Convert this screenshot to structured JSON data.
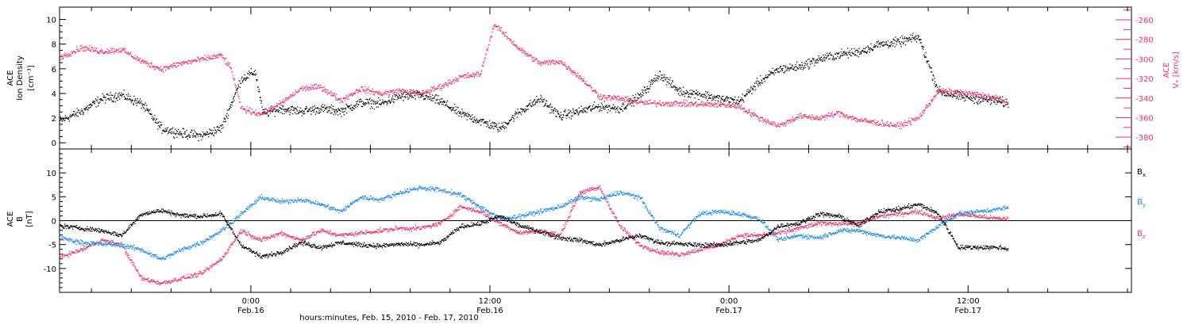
{
  "colors": {
    "black": "#000000",
    "pink": "#e8336a",
    "blue": "#1e88e5",
    "frame": "#000000"
  },
  "xaxis": {
    "label": "hours:minutes, Feb. 15, 2010 - Feb. 17, 2010",
    "ticks": [
      {
        "t": 24,
        "time": "0:00",
        "date": "Feb.16"
      },
      {
        "t": 36,
        "time": "12:00",
        "date": "Feb.16"
      },
      {
        "t": 48,
        "time": "0:00",
        "date": "Feb.17"
      },
      {
        "t": 60,
        "time": "12:00",
        "date": "Feb.17"
      }
    ],
    "range_hours": [
      14.4,
      68.2
    ]
  },
  "chart_data": [
    {
      "type": "scatter",
      "panel": "top",
      "ylabel_left": [
        "ACE",
        "Ion Density",
        "[cm⁻³]"
      ],
      "ylabel_right": [
        "ACE",
        "Vₓ [km/s]"
      ],
      "ylim_left": [
        -0.5,
        11
      ],
      "yticks_left": [
        0,
        2,
        4,
        6,
        8,
        10
      ],
      "ylim_right": [
        -392,
        -247
      ],
      "yticks_right": [
        -380,
        -360,
        -340,
        -320,
        -300,
        -280,
        -260
      ],
      "series": [
        {
          "color": "black",
          "axis": "left",
          "data": [
            [
              14.4,
              1.8
            ],
            [
              15.5,
              2.6
            ],
            [
              16.5,
              3.6
            ],
            [
              17.5,
              3.9
            ],
            [
              18.5,
              3.2
            ],
            [
              19.5,
              1.2
            ],
            [
              20.5,
              0.8
            ],
            [
              21.5,
              0.6
            ],
            [
              22.5,
              1.2
            ],
            [
              23.0,
              3.2
            ],
            [
              23.5,
              5.2
            ],
            [
              24.2,
              5.8
            ],
            [
              24.6,
              2.4
            ],
            [
              25.5,
              2.8
            ],
            [
              26.5,
              2.6
            ],
            [
              27.5,
              2.8
            ],
            [
              28.5,
              2.6
            ],
            [
              29.5,
              3.3
            ],
            [
              30.5,
              3.2
            ],
            [
              31.5,
              3.8
            ],
            [
              32.5,
              3.9
            ],
            [
              33.5,
              3.4
            ],
            [
              34.5,
              2.4
            ],
            [
              35.5,
              1.8
            ],
            [
              36.5,
              1.2
            ],
            [
              37.5,
              2.6
            ],
            [
              38.5,
              3.6
            ],
            [
              39.5,
              2.2
            ],
            [
              40.5,
              2.6
            ],
            [
              41.5,
              3.0
            ],
            [
              42.5,
              2.8
            ],
            [
              43.5,
              3.8
            ],
            [
              44.5,
              5.6
            ],
            [
              45.5,
              4.2
            ],
            [
              46.5,
              4.0
            ],
            [
              47.5,
              3.6
            ],
            [
              48.5,
              3.4
            ],
            [
              49.5,
              5.0
            ],
            [
              50.5,
              6.0
            ],
            [
              51.5,
              6.2
            ],
            [
              52.5,
              6.8
            ],
            [
              53.5,
              7.2
            ],
            [
              54.5,
              7.4
            ],
            [
              55.5,
              8.0
            ],
            [
              56.5,
              8.2
            ],
            [
              57.5,
              8.6
            ],
            [
              58.5,
              4.2
            ],
            [
              59.5,
              3.8
            ],
            [
              60.5,
              3.6
            ],
            [
              61.5,
              3.4
            ],
            [
              62.0,
              3.2
            ]
          ]
        },
        {
          "color": "pink",
          "axis": "right",
          "data": [
            [
              14.4,
              -298
            ],
            [
              15.5,
              -288
            ],
            [
              16.5,
              -292
            ],
            [
              17.5,
              -290
            ],
            [
              18.5,
              -302
            ],
            [
              19.5,
              -310
            ],
            [
              20.5,
              -304
            ],
            [
              21.5,
              -300
            ],
            [
              22.5,
              -296
            ],
            [
              23.0,
              -310
            ],
            [
              23.5,
              -350
            ],
            [
              24.5,
              -356
            ],
            [
              25.5,
              -345
            ],
            [
              26.5,
              -330
            ],
            [
              27.5,
              -328
            ],
            [
              28.5,
              -342
            ],
            [
              29.5,
              -330
            ],
            [
              30.5,
              -335
            ],
            [
              31.5,
              -332
            ],
            [
              32.5,
              -335
            ],
            [
              33.5,
              -328
            ],
            [
              34.5,
              -318
            ],
            [
              35.5,
              -315
            ],
            [
              36.2,
              -264
            ],
            [
              37.5,
              -290
            ],
            [
              38.5,
              -304
            ],
            [
              39.5,
              -302
            ],
            [
              40.5,
              -318
            ],
            [
              41.5,
              -338
            ],
            [
              42.5,
              -340
            ],
            [
              43.5,
              -344
            ],
            [
              44.5,
              -345
            ],
            [
              45.5,
              -345
            ],
            [
              46.5,
              -346
            ],
            [
              47.5,
              -346
            ],
            [
              48.5,
              -348
            ],
            [
              49.5,
              -360
            ],
            [
              50.5,
              -368
            ],
            [
              51.5,
              -358
            ],
            [
              52.5,
              -360
            ],
            [
              53.5,
              -355
            ],
            [
              54.5,
              -362
            ],
            [
              55.5,
              -365
            ],
            [
              56.5,
              -368
            ],
            [
              57.5,
              -360
            ],
            [
              58.5,
              -332
            ],
            [
              59.5,
              -334
            ],
            [
              60.5,
              -336
            ],
            [
              61.5,
              -340
            ],
            [
              62.0,
              -345
            ]
          ]
        }
      ]
    },
    {
      "type": "scatter",
      "panel": "bottom",
      "ylabel_left": [
        "ACE",
        "B",
        "[nT]"
      ],
      "ylim": [
        -15,
        15
      ],
      "yticks": [
        -10,
        -5,
        0,
        5,
        10
      ],
      "legend": [
        "Bx",
        "By",
        "Bz"
      ],
      "series": [
        {
          "name": "Bx",
          "color": "black",
          "data": [
            [
              14.4,
              -1
            ],
            [
              15.5,
              -1.5
            ],
            [
              16.5,
              -2
            ],
            [
              17.5,
              -3
            ],
            [
              18.5,
              1.5
            ],
            [
              19.5,
              2.2
            ],
            [
              20.5,
              1.2
            ],
            [
              21.5,
              1.0
            ],
            [
              22.5,
              1.5
            ],
            [
              23.5,
              -5
            ],
            [
              24.5,
              -7.5
            ],
            [
              25.5,
              -6.5
            ],
            [
              26.5,
              -4.5
            ],
            [
              27.5,
              -5.5
            ],
            [
              28.5,
              -4.5
            ],
            [
              29.5,
              -5
            ],
            [
              30.5,
              -5.2
            ],
            [
              31.5,
              -4.8
            ],
            [
              32.5,
              -5
            ],
            [
              33.5,
              -4.5
            ],
            [
              34.5,
              -1.2
            ],
            [
              35.5,
              -0.5
            ],
            [
              36.5,
              1.0
            ],
            [
              37.5,
              -1
            ],
            [
              38.5,
              -2.2
            ],
            [
              39.5,
              -3.5
            ],
            [
              40.5,
              -4
            ],
            [
              41.5,
              -5
            ],
            [
              42.5,
              -4
            ],
            [
              43.5,
              -3
            ],
            [
              44.5,
              -4.5
            ],
            [
              45.5,
              -4.8
            ],
            [
              46.5,
              -5
            ],
            [
              47.5,
              -5
            ],
            [
              48.5,
              -4.5
            ],
            [
              49.5,
              -4
            ],
            [
              50.5,
              -1
            ],
            [
              51.5,
              -0.5
            ],
            [
              52.5,
              1.5
            ],
            [
              53.5,
              1
            ],
            [
              54.5,
              -1
            ],
            [
              55.5,
              2
            ],
            [
              56.5,
              2.5
            ],
            [
              57.5,
              3.5
            ],
            [
              58.5,
              1.5
            ],
            [
              59.5,
              -5.5
            ],
            [
              60.5,
              -5.5
            ],
            [
              61.5,
              -5.5
            ],
            [
              62.0,
              -5.8
            ]
          ]
        },
        {
          "name": "By",
          "color": "blue",
          "data": [
            [
              14.4,
              -3.5
            ],
            [
              15.5,
              -4.5
            ],
            [
              16.5,
              -4.8
            ],
            [
              17.5,
              -5
            ],
            [
              18.5,
              -6
            ],
            [
              19.5,
              -8
            ],
            [
              20.5,
              -6
            ],
            [
              21.5,
              -4.5
            ],
            [
              22.5,
              -2
            ],
            [
              23.5,
              1.5
            ],
            [
              24.5,
              5
            ],
            [
              25.5,
              4
            ],
            [
              26.5,
              4.5
            ],
            [
              27.5,
              3.5
            ],
            [
              28.5,
              2
            ],
            [
              29.5,
              5
            ],
            [
              30.5,
              4.5
            ],
            [
              31.5,
              6
            ],
            [
              32.5,
              7
            ],
            [
              33.5,
              6.5
            ],
            [
              34.5,
              5.5
            ],
            [
              35.5,
              3
            ],
            [
              36.5,
              0.5
            ],
            [
              37.5,
              1
            ],
            [
              38.5,
              2
            ],
            [
              39.5,
              3
            ],
            [
              40.5,
              5
            ],
            [
              41.5,
              4.5
            ],
            [
              42.5,
              6
            ],
            [
              43.5,
              5
            ],
            [
              44.5,
              -1.5
            ],
            [
              45.5,
              -3
            ],
            [
              46.5,
              1.5
            ],
            [
              47.5,
              2
            ],
            [
              48.5,
              1.5
            ],
            [
              49.5,
              0.5
            ],
            [
              50.5,
              -4
            ],
            [
              51.5,
              -3
            ],
            [
              52.5,
              -3.5
            ],
            [
              53.5,
              -2
            ],
            [
              54.5,
              -2
            ],
            [
              55.5,
              -3
            ],
            [
              56.5,
              -3.5
            ],
            [
              57.5,
              -4
            ],
            [
              58.5,
              -1
            ],
            [
              59.5,
              1.5
            ],
            [
              60.5,
              2
            ],
            [
              61.5,
              2.5
            ],
            [
              62.0,
              2.8
            ]
          ]
        },
        {
          "name": "Bz",
          "color": "pink",
          "data": [
            [
              14.4,
              -7.5
            ],
            [
              15.5,
              -6
            ],
            [
              16.5,
              -4
            ],
            [
              17.5,
              -5
            ],
            [
              18.5,
              -12
            ],
            [
              19.5,
              -13
            ],
            [
              20.5,
              -12
            ],
            [
              21.5,
              -11
            ],
            [
              22.5,
              -8
            ],
            [
              23.5,
              -2
            ],
            [
              24.5,
              -4
            ],
            [
              25.5,
              -2.5
            ],
            [
              26.5,
              -4
            ],
            [
              27.5,
              -2
            ],
            [
              28.5,
              -3
            ],
            [
              29.5,
              -2.5
            ],
            [
              30.5,
              -2
            ],
            [
              31.5,
              -1.5
            ],
            [
              32.5,
              -1.5
            ],
            [
              33.5,
              -0.5
            ],
            [
              34.5,
              3
            ],
            [
              35.5,
              2
            ],
            [
              36.5,
              -0.5
            ],
            [
              37.5,
              -2.5
            ],
            [
              38.5,
              -2
            ],
            [
              39.5,
              -3
            ],
            [
              40.5,
              6
            ],
            [
              41.5,
              7
            ],
            [
              42.5,
              -1
            ],
            [
              43.5,
              -5
            ],
            [
              44.5,
              -6.5
            ],
            [
              45.5,
              -7
            ],
            [
              46.5,
              -6
            ],
            [
              47.5,
              -5
            ],
            [
              48.5,
              -3
            ],
            [
              49.5,
              -3
            ],
            [
              50.5,
              -2.5
            ],
            [
              51.5,
              -1.5
            ],
            [
              52.5,
              -0.5
            ],
            [
              53.5,
              -0.5
            ],
            [
              54.5,
              -0.5
            ],
            [
              55.5,
              1
            ],
            [
              56.5,
              1.5
            ],
            [
              57.5,
              2
            ],
            [
              58.5,
              0.5
            ],
            [
              59.5,
              1.5
            ],
            [
              60.5,
              1.0
            ],
            [
              61.5,
              0.5
            ],
            [
              62.0,
              0.5
            ]
          ]
        }
      ]
    }
  ]
}
